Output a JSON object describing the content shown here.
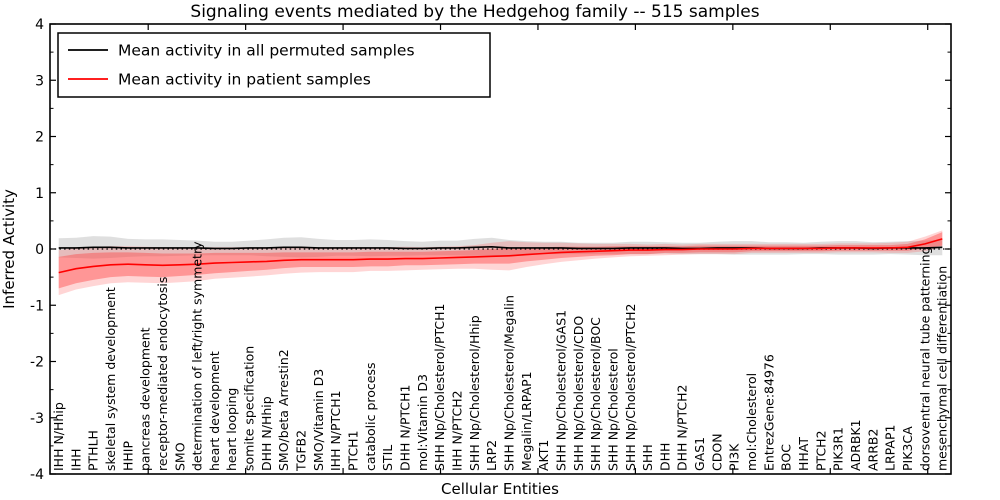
{
  "chart_data": {
    "type": "line",
    "title": "Signaling events mediated by the Hedgehog family -- 515 samples",
    "xlabel": "Cellular Entities",
    "ylabel": "Inferred Activity",
    "legend": [
      "Mean activity in all permuted samples",
      "Mean activity in patient samples"
    ],
    "legend_position": "upper left",
    "ylim": [
      -4,
      4
    ],
    "yticks": [
      -4,
      -3,
      -2,
      -1,
      0,
      1,
      2,
      3,
      4
    ],
    "grid": false,
    "zero_line_style": "dotted",
    "frame_color": "#000000",
    "background_color": "#ffffff",
    "categories": [
      "IHH N/Hhip",
      "IHH",
      "PTHLH",
      "skeletal system development",
      "HHIP",
      "pancreas development",
      "receptor-mediated endocytosis",
      "SMO",
      "determination of left/right symmetry",
      "heart development",
      "heart looping",
      "somite specification",
      "DHH N/Hhip",
      "SMO/beta Arrestin2",
      "TGFB2",
      "SMO/Vitamin D3",
      "IHH N/PTCH1",
      "PTCH1",
      "catabolic process",
      "STIL",
      "DHH N/PTCH1",
      "mol:Vitamin D3",
      "SHH Np/Cholesterol/PTCH1",
      "IHH N/PTCH2",
      "SHH Np/Cholesterol/Hhip",
      "LRP2",
      "SHH Np/Cholesterol/Megalin",
      "Megalin/LRPAP1",
      "AKT1",
      "SHH Np/Cholesterol/GAS1",
      "SHH Np/Cholesterol/CDO",
      "SHH Np/Cholesterol/BOC",
      "SHH Np/Cholesterol",
      "SHH Np/Cholesterol/PTCH2",
      "SHH",
      "DHH",
      "DHH N/PTCH2",
      "GAS1",
      "CDON",
      "PI3K",
      "mol:Cholesterol",
      "EntrezGene:84976",
      "BOC",
      "HHAT",
      "PTCH2",
      "PIK3R1",
      "ADRBK1",
      "ARRB2",
      "LRPAP1",
      "PIK3CA",
      "dorsoventral neural tube patterning",
      "mesenchymal cell differentiation"
    ],
    "series": [
      {
        "name": "Mean activity in all permuted samples",
        "color": "#000000",
        "band_color": "#aaaaaa",
        "values": [
          0.02,
          0.02,
          0.03,
          0.03,
          0.02,
          0.02,
          0.02,
          0.02,
          0.02,
          0.01,
          0.01,
          0.02,
          0.02,
          0.03,
          0.03,
          0.02,
          0.02,
          0.02,
          0.02,
          0.02,
          0.01,
          0.01,
          0.02,
          0.02,
          0.03,
          0.04,
          0.02,
          0.02,
          0.02,
          0.02,
          0.01,
          0.01,
          0.01,
          0.02,
          0.02,
          0.02,
          0.01,
          0.01,
          0.02,
          0.02,
          0.02,
          0.01,
          0.01,
          0.01,
          0.02,
          0.02,
          0.02,
          0.01,
          0.02,
          0.02,
          0.02,
          0.03
        ],
        "band": [
          0.17,
          0.18,
          0.2,
          0.19,
          0.16,
          0.15,
          0.15,
          0.14,
          0.13,
          0.12,
          0.12,
          0.13,
          0.15,
          0.17,
          0.18,
          0.16,
          0.14,
          0.14,
          0.15,
          0.14,
          0.13,
          0.12,
          0.13,
          0.13,
          0.15,
          0.16,
          0.14,
          0.12,
          0.11,
          0.11,
          0.1,
          0.1,
          0.1,
          0.11,
          0.11,
          0.1,
          0.1,
          0.1,
          0.11,
          0.12,
          0.12,
          0.11,
          0.11,
          0.1,
          0.11,
          0.12,
          0.12,
          0.11,
          0.11,
          0.12,
          0.13,
          0.14
        ]
      },
      {
        "name": "Mean activity in patient samples",
        "color": "#ff0000",
        "band_color": "#ff4040",
        "values": [
          -0.42,
          -0.35,
          -0.31,
          -0.28,
          -0.27,
          -0.28,
          -0.29,
          -0.28,
          -0.27,
          -0.25,
          -0.24,
          -0.23,
          -0.22,
          -0.2,
          -0.19,
          -0.19,
          -0.19,
          -0.19,
          -0.18,
          -0.18,
          -0.17,
          -0.17,
          -0.16,
          -0.15,
          -0.14,
          -0.13,
          -0.12,
          -0.1,
          -0.08,
          -0.06,
          -0.05,
          -0.04,
          -0.03,
          -0.02,
          -0.02,
          -0.01,
          -0.01,
          0.0,
          0.0,
          0.0,
          0.01,
          0.01,
          0.01,
          0.01,
          0.01,
          0.02,
          0.02,
          0.02,
          0.02,
          0.03,
          0.09,
          0.18
        ],
        "band": [
          0.28,
          0.26,
          0.24,
          0.22,
          0.21,
          0.21,
          0.21,
          0.2,
          0.19,
          0.18,
          0.17,
          0.16,
          0.15,
          0.14,
          0.13,
          0.13,
          0.13,
          0.13,
          0.13,
          0.13,
          0.12,
          0.12,
          0.12,
          0.12,
          0.12,
          0.13,
          0.14,
          0.12,
          0.11,
          0.1,
          0.09,
          0.08,
          0.08,
          0.07,
          0.07,
          0.06,
          0.06,
          0.06,
          0.06,
          0.06,
          0.05,
          0.05,
          0.05,
          0.05,
          0.05,
          0.05,
          0.05,
          0.05,
          0.05,
          0.06,
          0.08,
          0.12
        ],
        "band_outer": [
          0.4,
          0.37,
          0.35,
          0.33,
          0.32,
          0.32,
          0.32,
          0.31,
          0.3,
          0.28,
          0.27,
          0.26,
          0.25,
          0.24,
          0.23,
          0.22,
          0.22,
          0.22,
          0.21,
          0.21,
          0.21,
          0.2,
          0.2,
          0.2,
          0.21,
          0.24,
          0.26,
          0.22,
          0.19,
          0.17,
          0.15,
          0.13,
          0.12,
          0.11,
          0.1,
          0.1,
          0.09,
          0.09,
          0.09,
          0.09,
          0.08,
          0.08,
          0.08,
          0.08,
          0.08,
          0.08,
          0.08,
          0.08,
          0.09,
          0.1,
          0.13,
          0.15
        ]
      }
    ]
  }
}
